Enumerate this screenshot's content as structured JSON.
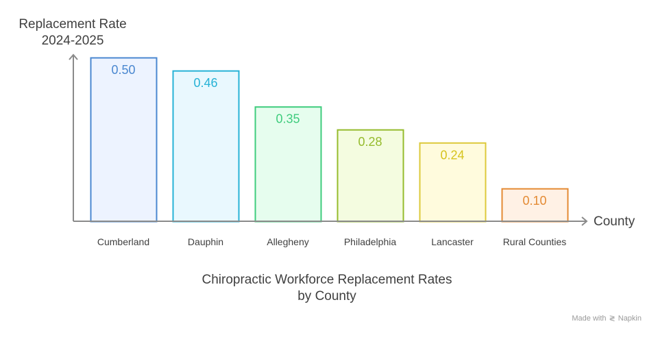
{
  "chart_data": {
    "type": "bar",
    "title_lines": [
      "Chiropractic Workforce Replacement Rates",
      "by County"
    ],
    "ylabel_lines": [
      "Replacement Rate",
      "2024-2025"
    ],
    "xlabel": "County",
    "categories": [
      "Cumberland",
      "Dauphin",
      "Allegheny",
      "Philadelphia",
      "Lancaster",
      "Rural Counties"
    ],
    "values": [
      0.5,
      0.46,
      0.35,
      0.28,
      0.24,
      0.1
    ],
    "value_labels": [
      "0.50",
      "0.46",
      "0.35",
      "0.28",
      "0.24",
      "0.10"
    ],
    "ylim": [
      0,
      0.5
    ],
    "grid": false,
    "legend": "none",
    "colors": [
      {
        "stroke": "#4a87d0",
        "fill": "#edf3ff",
        "text": "#4a87d0"
      },
      {
        "stroke": "#26b2d6",
        "fill": "#e9f8fe",
        "text": "#26b2d6"
      },
      {
        "stroke": "#3fcc7d",
        "fill": "#e6fdee",
        "text": "#3fcc7d"
      },
      {
        "stroke": "#95bb2c",
        "fill": "#f4fce0",
        "text": "#95bb2c"
      },
      {
        "stroke": "#dcc93a",
        "fill": "#fffbdd",
        "text": "#d6c31d"
      },
      {
        "stroke": "#e48a33",
        "fill": "#fff1e5",
        "text": "#e48a33"
      }
    ],
    "axis_color": "#8a8a8a"
  },
  "watermark": {
    "text": "Made with",
    "brand": "Napkin",
    "icon": "napkin-logo-icon"
  }
}
